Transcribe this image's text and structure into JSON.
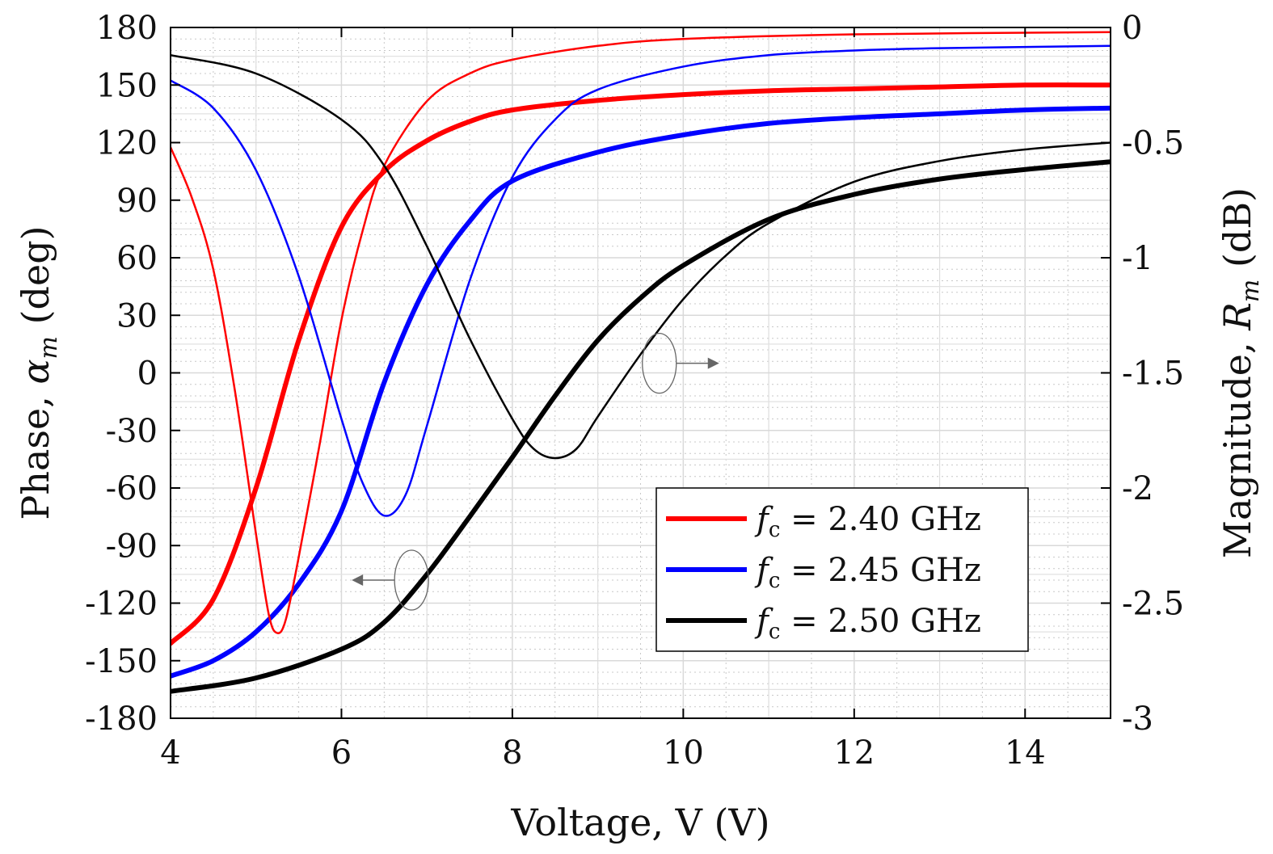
{
  "chart_data": {
    "type": "line",
    "xlabel": "Voltage, V (V)",
    "ylabel_left_prefix": "Phase, ",
    "ylabel_left_symbol": "α",
    "ylabel_left_sub": "m",
    "ylabel_left_suffix": " (deg)",
    "ylabel_right_prefix": "Magnitude, ",
    "ylabel_right_symbol": "R",
    "ylabel_right_sub": "m",
    "ylabel_right_suffix": " (dB)",
    "xlim": [
      4,
      15
    ],
    "ylim_left": [
      -180,
      180
    ],
    "ylim_right": [
      -3,
      0
    ],
    "x_ticks": [
      "4",
      "6",
      "8",
      "10",
      "12",
      "14"
    ],
    "y_ticks_left": [
      "180",
      "150",
      "120",
      "90",
      "60",
      "30",
      "0",
      "-30",
      "-60",
      "-90",
      "-120",
      "-150",
      "-180"
    ],
    "y_ticks_right": [
      "0",
      "-0.5",
      "-1",
      "-1.5",
      "-2",
      "-2.5",
      "-3"
    ],
    "grid": true,
    "minor_grid": true,
    "legend_position": "bottom-right",
    "legend_entries": [
      {
        "label_sym": "f",
        "label_sub": "c",
        "label_val": " = 2.40 GHz",
        "color": "#ff0000"
      },
      {
        "label_sym": "f",
        "label_sub": "c",
        "label_val": " = 2.45 GHz",
        "color": "#0000ff"
      },
      {
        "label_sym": "f",
        "label_sub": "c",
        "label_val": " = 2.50 GHz",
        "color": "#000000"
      }
    ],
    "series": [
      {
        "name": "f_c = 2.40 GHz",
        "quantity": "phase",
        "axis": "left",
        "style": "thick",
        "color": "#ff0000",
        "x": [
          4,
          4.5,
          5,
          5.5,
          6,
          6.5,
          7,
          7.5,
          8,
          9,
          10,
          11,
          12,
          13,
          14,
          15
        ],
        "y": [
          -141,
          -118,
          -60,
          17,
          76,
          105,
          121,
          131,
          137,
          142,
          145,
          147,
          148,
          149,
          150,
          150
        ]
      },
      {
        "name": "f_c = 2.45 GHz",
        "quantity": "phase",
        "axis": "left",
        "style": "thick",
        "color": "#0000ff",
        "x": [
          4,
          4.5,
          5,
          5.5,
          6,
          6.5,
          7,
          7.5,
          8,
          9,
          10,
          11,
          12,
          13,
          14,
          15
        ],
        "y": [
          -158,
          -150,
          -135,
          -110,
          -72,
          -5,
          46,
          79,
          100,
          115,
          124,
          130,
          133,
          135,
          137,
          138
        ]
      },
      {
        "name": "f_c = 2.50 GHz",
        "quantity": "phase",
        "axis": "left",
        "style": "thick",
        "color": "#000000",
        "x": [
          4,
          5,
          6,
          6.5,
          7,
          7.5,
          8,
          8.5,
          9,
          9.5,
          10,
          11,
          12,
          13,
          14,
          15
        ],
        "y": [
          -166,
          -159,
          -144,
          -130,
          -105,
          -75,
          -44,
          -12,
          17,
          39,
          56,
          80,
          93,
          101,
          106,
          110
        ]
      },
      {
        "name": "f_c = 2.40 GHz",
        "quantity": "magnitude",
        "axis": "right",
        "style": "thin",
        "color": "#ff0000",
        "x": [
          4,
          4.25,
          4.5,
          4.75,
          5,
          5.15,
          5.25,
          5.35,
          5.5,
          5.75,
          6,
          6.25,
          6.5,
          7,
          7.5,
          8,
          9,
          10,
          12,
          15
        ],
        "y": [
          -0.52,
          -0.74,
          -1.05,
          -1.57,
          -2.2,
          -2.55,
          -2.63,
          -2.57,
          -2.3,
          -1.8,
          -1.27,
          -0.88,
          -0.6,
          -0.32,
          -0.2,
          -0.14,
          -0.08,
          -0.05,
          -0.03,
          -0.02
        ]
      },
      {
        "name": "f_c = 2.45 GHz",
        "quantity": "magnitude",
        "axis": "right",
        "style": "thin",
        "color": "#0000ff",
        "x": [
          4,
          4.5,
          5,
          5.5,
          6,
          6.25,
          6.5,
          6.75,
          7,
          7.5,
          8,
          8.5,
          9,
          10,
          11,
          12,
          13,
          15
        ],
        "y": [
          -0.23,
          -0.35,
          -0.62,
          -1.08,
          -1.7,
          -1.98,
          -2.12,
          -2.03,
          -1.73,
          -1.1,
          -0.65,
          -0.4,
          -0.27,
          -0.17,
          -0.12,
          -0.1,
          -0.09,
          -0.08
        ]
      },
      {
        "name": "f_c = 2.50 GHz",
        "quantity": "magnitude",
        "axis": "right",
        "style": "thin",
        "color": "#000000",
        "x": [
          4,
          5,
          6,
          6.5,
          7,
          7.5,
          8,
          8.25,
          8.5,
          8.75,
          9,
          9.5,
          10,
          10.5,
          11,
          12,
          13,
          14,
          15
        ],
        "y": [
          -0.12,
          -0.2,
          -0.4,
          -0.6,
          -0.95,
          -1.35,
          -1.7,
          -1.83,
          -1.87,
          -1.83,
          -1.69,
          -1.42,
          -1.18,
          -0.99,
          -0.85,
          -0.67,
          -0.58,
          -0.53,
          -0.5
        ]
      }
    ],
    "annotations": [
      {
        "kind": "ellipse-arrow",
        "target": "magnitude curves",
        "axis": "right",
        "x": 9.72,
        "y_left": 5,
        "arrow_dir": "right"
      },
      {
        "kind": "ellipse-arrow",
        "target": "phase curves",
        "axis": "left",
        "x": 6.82,
        "y_left": -108,
        "arrow_dir": "left"
      }
    ]
  }
}
